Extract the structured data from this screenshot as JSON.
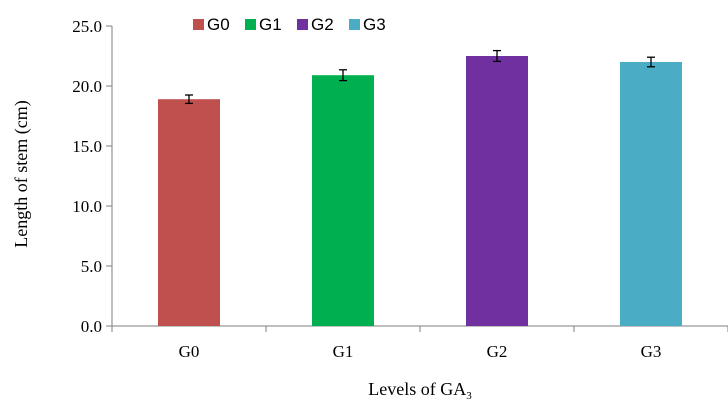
{
  "chart_data": {
    "type": "bar",
    "categories": [
      "G0",
      "G1",
      "G2",
      "G3"
    ],
    "series": [
      {
        "values": [
          18.9,
          20.9,
          22.5,
          22.0
        ],
        "errors": [
          0.35,
          0.45,
          0.45,
          0.4
        ],
        "colors": [
          "#c0504d",
          "#00b050",
          "#7030a0",
          "#4bacc6"
        ]
      }
    ],
    "legend": {
      "placement": "top-left",
      "items": [
        {
          "label": "G0",
          "color": "#c0504d"
        },
        {
          "label": "G1",
          "color": "#00b050"
        },
        {
          "label": "G2",
          "color": "#7030a0"
        },
        {
          "label": "G3",
          "color": "#4bacc6"
        }
      ]
    },
    "title": "",
    "xlabel_main": "Levels of GA",
    "xlabel_sub": "3",
    "ylabel": "Length of stem (cm)",
    "ylim": [
      0,
      25
    ],
    "yticks": [
      "0.0",
      "5.0",
      "10.0",
      "15.0",
      "20.0",
      "25.0"
    ],
    "grid": false
  }
}
